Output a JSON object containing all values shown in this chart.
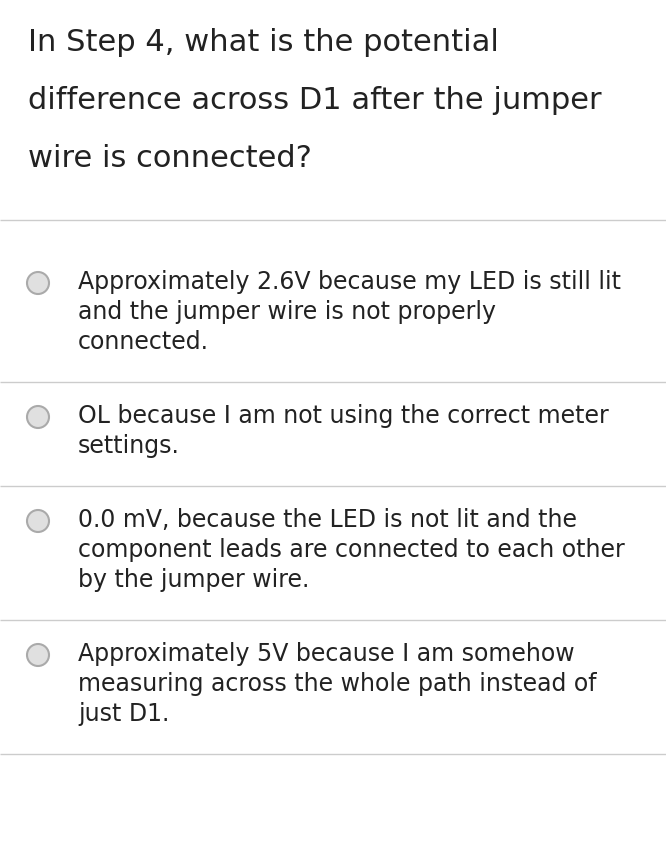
{
  "background_color": "#ffffff",
  "question_lines": [
    "In Step 4, what is the potential",
    "difference across D1 after the jumper",
    "wire is connected?"
  ],
  "question_fontsize": 22,
  "question_color": "#222222",
  "options": [
    [
      "Approximately 2.6V because my LED is still lit",
      "and the jumper wire is not properly",
      "connected."
    ],
    [
      "OL because I am not using the correct meter",
      "settings."
    ],
    [
      "0.0 mV, because the LED is not lit and the",
      "component leads are connected to each other",
      "by the jumper wire."
    ],
    [
      "Approximately 5V because I am somehow",
      "measuring across the whole path instead of",
      "just D1."
    ]
  ],
  "option_fontsize": 17,
  "option_color": "#222222",
  "divider_color": "#cccccc",
  "circle_edge_color": "#aaaaaa",
  "circle_face_color": "#e0e0e0",
  "fig_width": 6.66,
  "fig_height": 8.6,
  "dpi": 100
}
